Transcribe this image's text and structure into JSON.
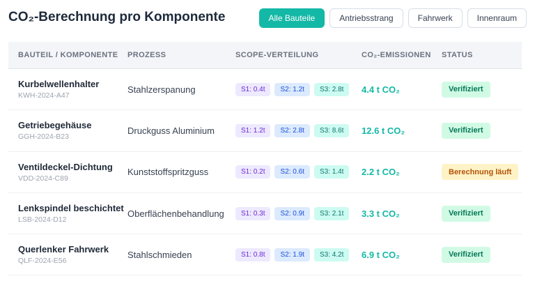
{
  "page": {
    "title": "CO₂-Berechnung pro Komponente"
  },
  "filters": [
    {
      "label": "Alle Bauteile",
      "active": true
    },
    {
      "label": "Antriebsstrang",
      "active": false
    },
    {
      "label": "Fahrwerk",
      "active": false
    },
    {
      "label": "Innenraum",
      "active": false
    }
  ],
  "columns": {
    "component": "Bauteil / Komponente",
    "process": "Prozess",
    "scope": "Scope-Verteilung",
    "emissions": "CO₂-Emissionen",
    "status": "Status"
  },
  "rows": [
    {
      "name": "Kurbelwellenhalter",
      "code": "KWH-2024-A47",
      "process": "Stahlzerspanung",
      "s1": "S1: 0.4t",
      "s2": "S2: 1.2t",
      "s3": "S3: 2.8t",
      "emissions": "4.4 t CO₂",
      "status": "Verifiziert",
      "status_kind": "ok"
    },
    {
      "name": "Getriebegehäuse",
      "code": "GGH-2024-B23",
      "process": "Druckguss Aluminium",
      "s1": "S1: 1.2t",
      "s2": "S2: 2.8t",
      "s3": "S3: 8.6t",
      "emissions": "12.6 t CO₂",
      "status": "Verifiziert",
      "status_kind": "ok"
    },
    {
      "name": "Ventildeckel-Dichtung",
      "code": "VDD-2024-C89",
      "process": "Kunststoffspritzguss",
      "s1": "S1: 0.2t",
      "s2": "S2: 0.6t",
      "s3": "S3: 1.4t",
      "emissions": "2.2 t CO₂",
      "status": "Berechnung läuft",
      "status_kind": "run"
    },
    {
      "name": "Lenkspindel beschichtet",
      "code": "LSB-2024-D12",
      "process": "Oberflächenbehandlung",
      "s1": "S1: 0.3t",
      "s2": "S2: 0.9t",
      "s3": "S3: 2.1t",
      "emissions": "3.3 t CO₂",
      "status": "Verifiziert",
      "status_kind": "ok"
    },
    {
      "name": "Querlenker Fahrwerk",
      "code": "QLF-2024-E56",
      "process": "Stahlschmieden",
      "s1": "S1: 0.8t",
      "s2": "S2: 1.9t",
      "s3": "S3: 4.2t",
      "emissions": "6.9 t CO₂",
      "status": "Verifiziert",
      "status_kind": "ok"
    }
  ],
  "colors": {
    "accent": "#14b8a6",
    "verified_bg": "#d1fae5",
    "running_bg": "#fef3c7"
  }
}
